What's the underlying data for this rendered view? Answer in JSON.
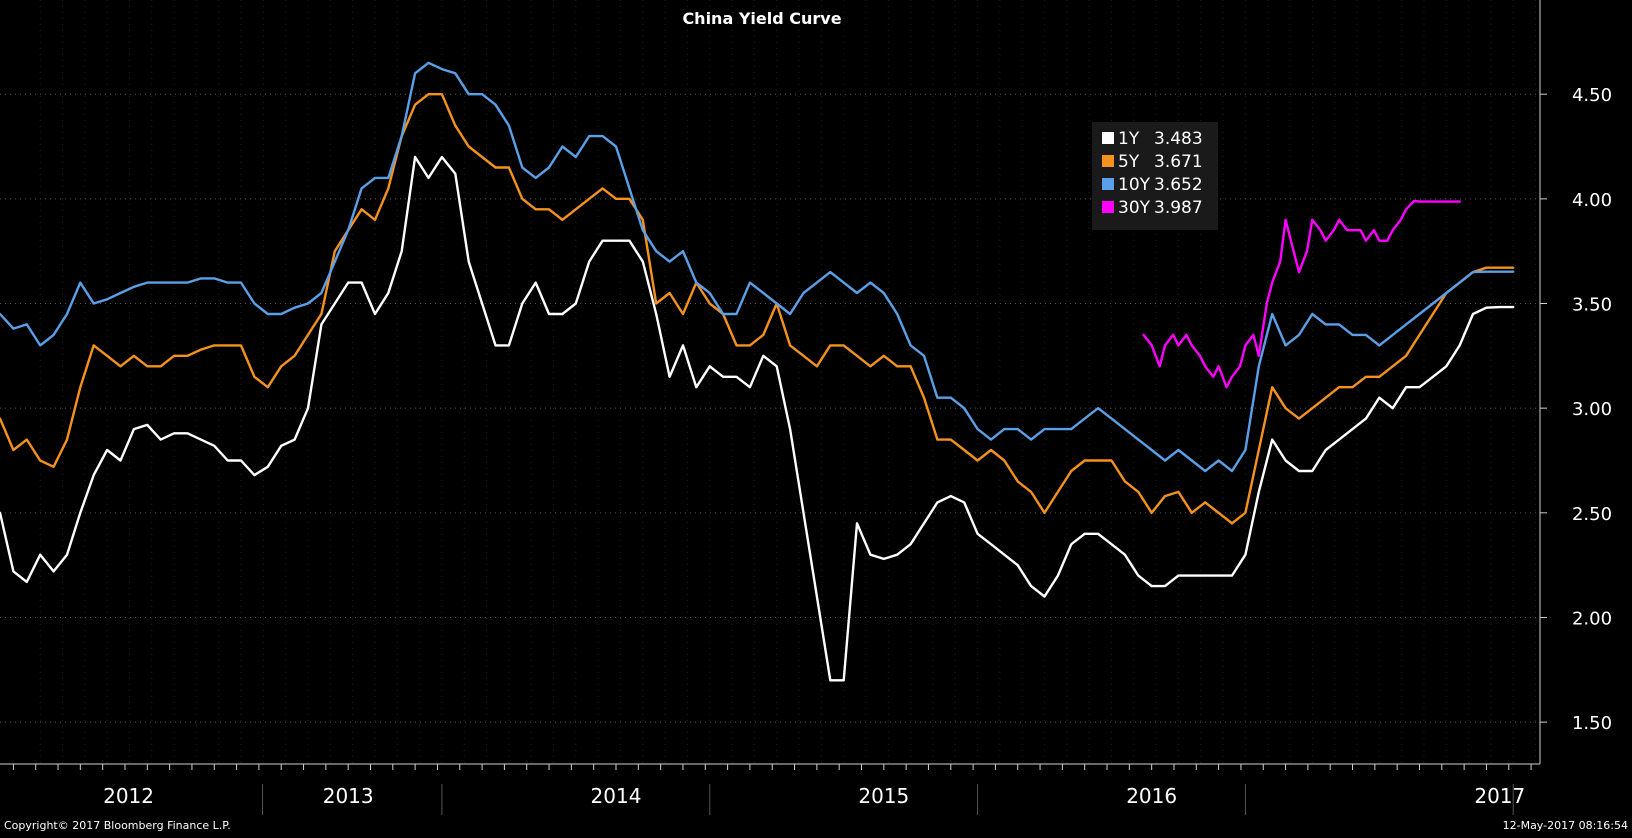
{
  "chart_data": {
    "type": "line",
    "title": "China Yield Curve",
    "xlabel": "",
    "ylabel": "",
    "x_unit": "year",
    "xlim": [
      2011.85,
      2017.6
    ],
    "ylim": [
      1.3,
      4.95
    ],
    "yticks": [
      1.5,
      2.0,
      2.5,
      3.0,
      3.5,
      4.0,
      4.5
    ],
    "ytick_labels": [
      "1.50",
      "2.00",
      "2.50",
      "3.00",
      "3.50",
      "4.00",
      "4.50"
    ],
    "xtick_labels": [
      {
        "label": "2012",
        "x": 2012.33
      },
      {
        "label": "2013",
        "x": 2013.15
      },
      {
        "label": "2014",
        "x": 2014.15
      },
      {
        "label": "2015",
        "x": 2015.15
      },
      {
        "label": "2016",
        "x": 2016.15
      },
      {
        "label": "2017",
        "x": 2017.45
      }
    ],
    "year_boundaries": [
      2012.83,
      2013.5,
      2014.5,
      2015.5,
      2016.5,
      2017.5
    ],
    "grid": true,
    "legend_position": "top-center-right",
    "series": [
      {
        "name": "1Y",
        "last_value": "3.483",
        "color": "#ffffff",
        "x": [
          2011.85,
          2011.9,
          2011.95,
          2012.0,
          2012.05,
          2012.1,
          2012.15,
          2012.2,
          2012.25,
          2012.3,
          2012.35,
          2012.4,
          2012.45,
          2012.5,
          2012.55,
          2012.6,
          2012.65,
          2012.7,
          2012.75,
          2012.8,
          2012.85,
          2012.9,
          2012.95,
          2013.0,
          2013.05,
          2013.1,
          2013.15,
          2013.2,
          2013.25,
          2013.3,
          2013.35,
          2013.4,
          2013.45,
          2013.5,
          2013.55,
          2013.6,
          2013.65,
          2013.7,
          2013.75,
          2013.8,
          2013.85,
          2013.9,
          2013.95,
          2014.0,
          2014.05,
          2014.1,
          2014.15,
          2014.2,
          2014.25,
          2014.3,
          2014.35,
          2014.4,
          2014.45,
          2014.5,
          2014.55,
          2014.6,
          2014.65,
          2014.7,
          2014.75,
          2014.8,
          2014.85,
          2014.9,
          2014.95,
          2015.0,
          2015.05,
          2015.1,
          2015.15,
          2015.2,
          2015.25,
          2015.3,
          2015.35,
          2015.4,
          2015.45,
          2015.5,
          2015.55,
          2015.6,
          2015.65,
          2015.7,
          2015.75,
          2015.8,
          2015.85,
          2015.9,
          2015.95,
          2016.0,
          2016.05,
          2016.1,
          2016.15,
          2016.2,
          2016.25,
          2016.3,
          2016.35,
          2016.4,
          2016.45,
          2016.5,
          2016.55,
          2016.6,
          2016.65,
          2016.7,
          2016.75,
          2016.8,
          2016.85,
          2016.9,
          2016.95,
          2017.0,
          2017.05,
          2017.1,
          2017.15,
          2017.2,
          2017.25,
          2017.3,
          2017.35,
          2017.4,
          2017.45,
          2017.5
        ],
        "values": [
          2.5,
          2.22,
          2.17,
          2.3,
          2.22,
          2.3,
          2.5,
          2.68,
          2.8,
          2.75,
          2.9,
          2.92,
          2.85,
          2.88,
          2.88,
          2.85,
          2.82,
          2.75,
          2.75,
          2.68,
          2.72,
          2.82,
          2.85,
          3.0,
          3.4,
          3.5,
          3.6,
          3.6,
          3.45,
          3.55,
          3.75,
          4.2,
          4.1,
          4.2,
          4.12,
          3.7,
          3.5,
          3.3,
          3.3,
          3.5,
          3.6,
          3.45,
          3.45,
          3.5,
          3.7,
          3.8,
          3.8,
          3.8,
          3.7,
          3.45,
          3.15,
          3.3,
          3.1,
          3.2,
          3.15,
          3.15,
          3.1,
          3.25,
          3.2,
          2.9,
          2.5,
          2.1,
          1.7,
          1.7,
          2.45,
          2.3,
          2.28,
          2.3,
          2.35,
          2.45,
          2.55,
          2.58,
          2.55,
          2.4,
          2.35,
          2.3,
          2.25,
          2.15,
          2.1,
          2.2,
          2.35,
          2.4,
          2.4,
          2.35,
          2.3,
          2.2,
          2.15,
          2.15,
          2.2,
          2.2,
          2.2,
          2.2,
          2.2,
          2.3,
          2.6,
          2.85,
          2.75,
          2.7,
          2.7,
          2.8,
          2.85,
          2.9,
          2.95,
          3.05,
          3.0,
          3.1,
          3.1,
          3.15,
          3.2,
          3.3,
          3.45,
          3.48,
          3.483,
          3.483
        ]
      },
      {
        "name": "5Y",
        "last_value": "3.671",
        "color": "#f5921e",
        "x": [
          2011.85,
          2011.9,
          2011.95,
          2012.0,
          2012.05,
          2012.1,
          2012.15,
          2012.2,
          2012.25,
          2012.3,
          2012.35,
          2012.4,
          2012.45,
          2012.5,
          2012.55,
          2012.6,
          2012.65,
          2012.7,
          2012.75,
          2012.8,
          2012.85,
          2012.9,
          2012.95,
          2013.0,
          2013.05,
          2013.1,
          2013.15,
          2013.2,
          2013.25,
          2013.3,
          2013.35,
          2013.4,
          2013.45,
          2013.5,
          2013.55,
          2013.6,
          2013.65,
          2013.7,
          2013.75,
          2013.8,
          2013.85,
          2013.9,
          2013.95,
          2014.0,
          2014.05,
          2014.1,
          2014.15,
          2014.2,
          2014.25,
          2014.3,
          2014.35,
          2014.4,
          2014.45,
          2014.5,
          2014.55,
          2014.6,
          2014.65,
          2014.7,
          2014.75,
          2014.8,
          2014.85,
          2014.9,
          2014.95,
          2015.0,
          2015.05,
          2015.1,
          2015.15,
          2015.2,
          2015.25,
          2015.3,
          2015.35,
          2015.4,
          2015.45,
          2015.5,
          2015.55,
          2015.6,
          2015.65,
          2015.7,
          2015.75,
          2015.8,
          2015.85,
          2015.9,
          2015.95,
          2016.0,
          2016.05,
          2016.1,
          2016.15,
          2016.2,
          2016.25,
          2016.3,
          2016.35,
          2016.4,
          2016.45,
          2016.5,
          2016.55,
          2016.6,
          2016.65,
          2016.7,
          2016.75,
          2016.8,
          2016.85,
          2016.9,
          2016.95,
          2017.0,
          2017.05,
          2017.1,
          2017.15,
          2017.2,
          2017.25,
          2017.3,
          2017.35,
          2017.4,
          2017.45,
          2017.5
        ],
        "values": [
          2.95,
          2.8,
          2.85,
          2.75,
          2.72,
          2.85,
          3.1,
          3.3,
          3.25,
          3.2,
          3.25,
          3.2,
          3.2,
          3.25,
          3.25,
          3.28,
          3.3,
          3.3,
          3.3,
          3.15,
          3.1,
          3.2,
          3.25,
          3.35,
          3.45,
          3.75,
          3.85,
          3.95,
          3.9,
          4.05,
          4.3,
          4.45,
          4.5,
          4.5,
          4.35,
          4.25,
          4.2,
          4.15,
          4.15,
          4.0,
          3.95,
          3.95,
          3.9,
          3.95,
          4.0,
          4.05,
          4.0,
          4.0,
          3.9,
          3.5,
          3.55,
          3.45,
          3.6,
          3.5,
          3.45,
          3.3,
          3.3,
          3.35,
          3.5,
          3.3,
          3.25,
          3.2,
          3.3,
          3.3,
          3.25,
          3.2,
          3.25,
          3.2,
          3.2,
          3.05,
          2.85,
          2.85,
          2.8,
          2.75,
          2.8,
          2.75,
          2.65,
          2.6,
          2.5,
          2.6,
          2.7,
          2.75,
          2.75,
          2.75,
          2.65,
          2.6,
          2.5,
          2.58,
          2.6,
          2.5,
          2.55,
          2.5,
          2.45,
          2.5,
          2.8,
          3.1,
          3.0,
          2.95,
          3.0,
          3.05,
          3.1,
          3.1,
          3.15,
          3.15,
          3.2,
          3.25,
          3.35,
          3.45,
          3.55,
          3.6,
          3.65,
          3.671,
          3.671,
          3.671
        ]
      },
      {
        "name": "10Y",
        "last_value": "3.652",
        "color": "#5aa0e8",
        "x": [
          2011.85,
          2011.9,
          2011.95,
          2012.0,
          2012.05,
          2012.1,
          2012.15,
          2012.2,
          2012.25,
          2012.3,
          2012.35,
          2012.4,
          2012.45,
          2012.5,
          2012.55,
          2012.6,
          2012.65,
          2012.7,
          2012.75,
          2012.8,
          2012.85,
          2012.9,
          2012.95,
          2013.0,
          2013.05,
          2013.1,
          2013.15,
          2013.2,
          2013.25,
          2013.3,
          2013.35,
          2013.4,
          2013.45,
          2013.5,
          2013.55,
          2013.6,
          2013.65,
          2013.7,
          2013.75,
          2013.8,
          2013.85,
          2013.9,
          2013.95,
          2014.0,
          2014.05,
          2014.1,
          2014.15,
          2014.2,
          2014.25,
          2014.3,
          2014.35,
          2014.4,
          2014.45,
          2014.5,
          2014.55,
          2014.6,
          2014.65,
          2014.7,
          2014.75,
          2014.8,
          2014.85,
          2014.9,
          2014.95,
          2015.0,
          2015.05,
          2015.1,
          2015.15,
          2015.2,
          2015.25,
          2015.3,
          2015.35,
          2015.4,
          2015.45,
          2015.5,
          2015.55,
          2015.6,
          2015.65,
          2015.7,
          2015.75,
          2015.8,
          2015.85,
          2015.9,
          2015.95,
          2016.0,
          2016.05,
          2016.1,
          2016.15,
          2016.2,
          2016.25,
          2016.3,
          2016.35,
          2016.4,
          2016.45,
          2016.5,
          2016.55,
          2016.6,
          2016.65,
          2016.7,
          2016.75,
          2016.8,
          2016.85,
          2016.9,
          2016.95,
          2017.0,
          2017.05,
          2017.1,
          2017.15,
          2017.2,
          2017.25,
          2017.3,
          2017.35,
          2017.4,
          2017.45,
          2017.5
        ],
        "values": [
          3.45,
          3.38,
          3.4,
          3.3,
          3.35,
          3.45,
          3.6,
          3.5,
          3.52,
          3.55,
          3.58,
          3.6,
          3.6,
          3.6,
          3.6,
          3.62,
          3.62,
          3.6,
          3.6,
          3.5,
          3.45,
          3.45,
          3.48,
          3.5,
          3.55,
          3.7,
          3.85,
          4.05,
          4.1,
          4.1,
          4.3,
          4.6,
          4.65,
          4.62,
          4.6,
          4.5,
          4.5,
          4.45,
          4.35,
          4.15,
          4.1,
          4.15,
          4.25,
          4.2,
          4.3,
          4.3,
          4.25,
          4.05,
          3.85,
          3.75,
          3.7,
          3.75,
          3.6,
          3.55,
          3.45,
          3.45,
          3.6,
          3.55,
          3.5,
          3.45,
          3.55,
          3.6,
          3.65,
          3.6,
          3.55,
          3.6,
          3.55,
          3.45,
          3.3,
          3.25,
          3.05,
          3.05,
          3.0,
          2.9,
          2.85,
          2.9,
          2.9,
          2.85,
          2.9,
          2.9,
          2.9,
          2.95,
          3.0,
          2.95,
          2.9,
          2.85,
          2.8,
          2.75,
          2.8,
          2.75,
          2.7,
          2.75,
          2.7,
          2.8,
          3.2,
          3.45,
          3.3,
          3.35,
          3.45,
          3.4,
          3.4,
          3.35,
          3.35,
          3.3,
          3.35,
          3.4,
          3.45,
          3.5,
          3.55,
          3.6,
          3.65,
          3.652,
          3.652,
          3.652
        ]
      },
      {
        "name": "30Y",
        "last_value": "3.987",
        "color": "#ff00ff",
        "x": [
          2016.12,
          2016.15,
          2016.18,
          2016.2,
          2016.23,
          2016.25,
          2016.28,
          2016.3,
          2016.33,
          2016.35,
          2016.38,
          2016.4,
          2016.43,
          2016.45,
          2016.48,
          2016.5,
          2016.53,
          2016.55,
          2016.58,
          2016.6,
          2016.63,
          2016.65,
          2016.68,
          2016.7,
          2016.73,
          2016.75,
          2016.78,
          2016.8,
          2016.83,
          2016.85,
          2016.88,
          2016.9,
          2016.93,
          2016.95,
          2016.98,
          2017.0,
          2017.03,
          2017.05,
          2017.08,
          2017.1,
          2017.13,
          2017.15,
          2017.18,
          2017.2,
          2017.23,
          2017.25,
          2017.28,
          2017.3
        ],
        "values": [
          3.35,
          3.3,
          3.2,
          3.3,
          3.35,
          3.3,
          3.35,
          3.3,
          3.25,
          3.2,
          3.15,
          3.2,
          3.1,
          3.15,
          3.2,
          3.3,
          3.35,
          3.25,
          3.5,
          3.6,
          3.7,
          3.9,
          3.75,
          3.65,
          3.75,
          3.9,
          3.85,
          3.8,
          3.85,
          3.9,
          3.85,
          3.85,
          3.85,
          3.8,
          3.85,
          3.8,
          3.8,
          3.85,
          3.9,
          3.95,
          3.99,
          3.987,
          3.987,
          3.987,
          3.987,
          3.987,
          3.987,
          3.987
        ]
      }
    ]
  },
  "footer": {
    "copyright": "Copyright© 2017 Bloomberg Finance L.P.",
    "timestamp": "12-May-2017 08:16:54"
  },
  "colors": {
    "background": "#000000",
    "legend_bg": "#1a1a1a",
    "grid": "#555555",
    "axis": "#cfcfcf"
  }
}
